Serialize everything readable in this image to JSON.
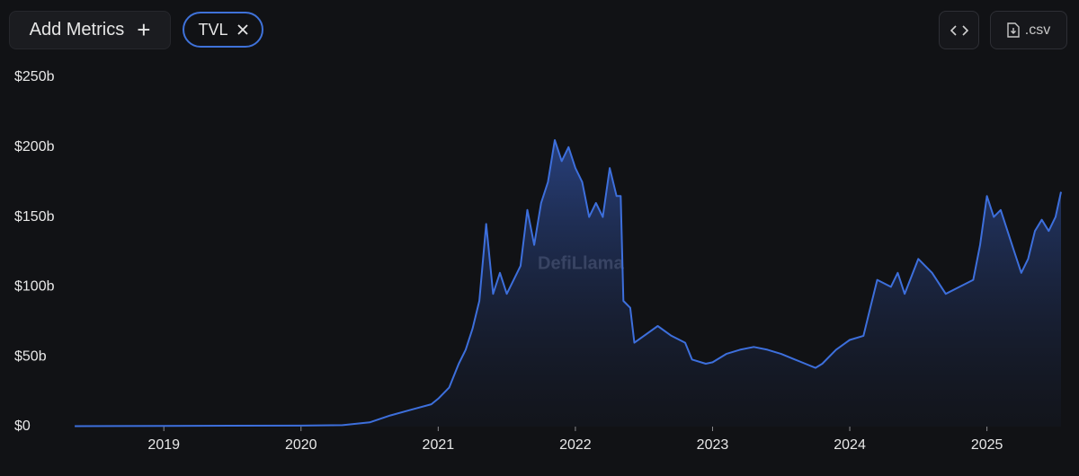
{
  "controls": {
    "add_metrics": "Add Metrics",
    "metric_chip": "TVL",
    "csv_button": ".csv"
  },
  "chart_data": {
    "type": "area",
    "watermark": "DefiLlama",
    "color": "#3d6fdc",
    "grid": false,
    "xlim": [
      2018.33,
      2025.54
    ],
    "xticks": [
      2019,
      2020,
      2021,
      2022,
      2023,
      2024,
      2025
    ],
    "ylim": [
      0,
      250
    ],
    "yticks": [
      {
        "value": 0,
        "label": "$0"
      },
      {
        "value": 50,
        "label": "$50b"
      },
      {
        "value": 100,
        "label": "$100b"
      },
      {
        "value": 150,
        "label": "$150b"
      },
      {
        "value": 200,
        "label": "$200b"
      },
      {
        "value": 250,
        "label": "$250b"
      }
    ],
    "series": [
      {
        "name": "TVL",
        "color": "#3d6fdc",
        "x": [
          2018.35,
          2019,
          2020,
          2020.3,
          2020.5,
          2020.65,
          2020.8,
          2020.95,
          2021.0,
          2021.08,
          2021.15,
          2021.2,
          2021.25,
          2021.3,
          2021.35,
          2021.4,
          2021.45,
          2021.5,
          2021.55,
          2021.6,
          2021.65,
          2021.7,
          2021.75,
          2021.8,
          2021.85,
          2021.9,
          2021.95,
          2022.0,
          2022.05,
          2022.1,
          2022.15,
          2022.2,
          2022.25,
          2022.3,
          2022.33,
          2022.35,
          2022.4,
          2022.43,
          2022.5,
          2022.6,
          2022.7,
          2022.8,
          2022.85,
          2022.95,
          2023.0,
          2023.1,
          2023.2,
          2023.3,
          2023.4,
          2023.5,
          2023.6,
          2023.7,
          2023.75,
          2023.8,
          2023.9,
          2024.0,
          2024.1,
          2024.15,
          2024.2,
          2024.3,
          2024.35,
          2024.4,
          2024.5,
          2024.6,
          2024.7,
          2024.8,
          2024.9,
          2024.95,
          2025.0,
          2025.05,
          2025.1,
          2025.15,
          2025.2,
          2025.25,
          2025.3,
          2025.35,
          2025.4,
          2025.45,
          2025.5,
          2025.54
        ],
        "values": [
          0.3,
          0.5,
          0.7,
          1,
          3,
          8,
          12,
          16,
          20,
          28,
          45,
          55,
          70,
          90,
          145,
          95,
          110,
          95,
          105,
          115,
          155,
          130,
          160,
          175,
          205,
          190,
          200,
          185,
          175,
          150,
          160,
          150,
          185,
          165,
          165,
          90,
          85,
          60,
          65,
          72,
          65,
          60,
          48,
          45,
          46,
          52,
          55,
          57,
          55,
          52,
          48,
          44,
          42,
          45,
          55,
          62,
          65,
          85,
          105,
          100,
          110,
          95,
          120,
          110,
          95,
          100,
          105,
          130,
          165,
          150,
          155,
          140,
          125,
          110,
          120,
          140,
          148,
          140,
          150,
          168
        ]
      }
    ]
  }
}
